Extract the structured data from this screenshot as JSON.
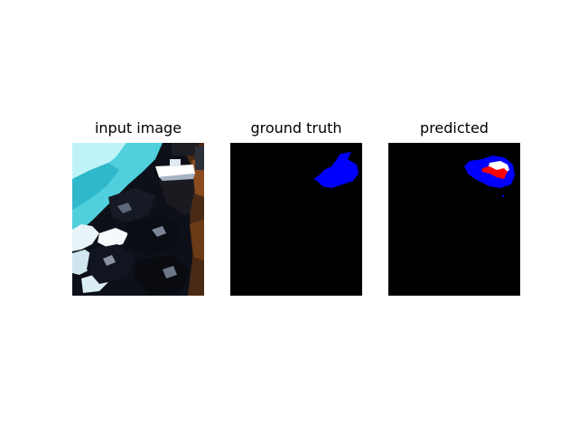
{
  "panels": [
    {
      "title": "input image"
    },
    {
      "title": "ground truth"
    },
    {
      "title": "predicted"
    }
  ],
  "colors": {
    "background": "#000000",
    "mask_primary": "#0000ff",
    "mask_secondary": "#ff0000",
    "mask_highlight": "#ffffff"
  }
}
